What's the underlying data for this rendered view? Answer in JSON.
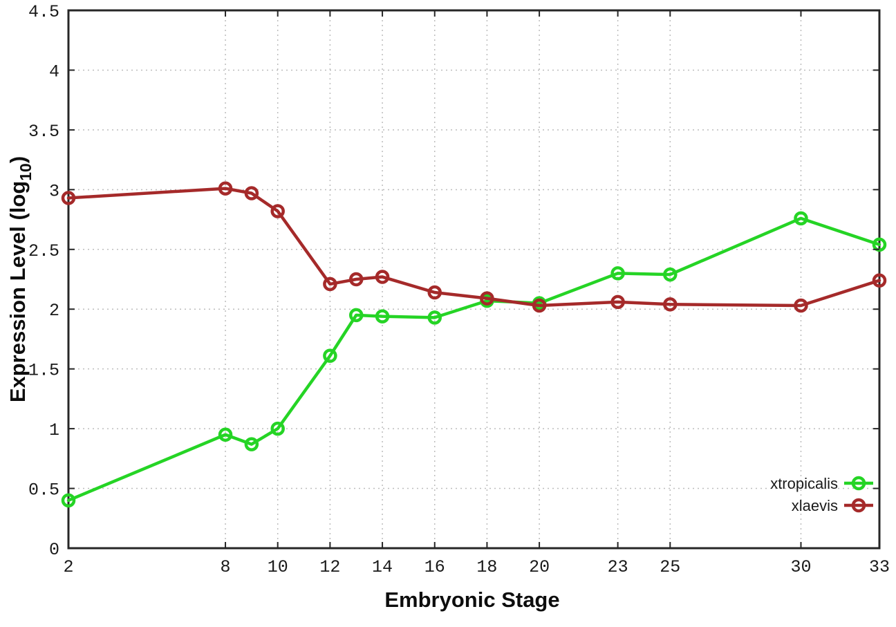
{
  "chart_data": {
    "type": "line",
    "title": "",
    "xlabel": "Embryonic Stage",
    "ylabel": "Expression Level (log10)",
    "ylabel_parts": {
      "main": "Expression Level (log",
      "sub": "10",
      "end": ")"
    },
    "xlim": [
      2,
      33
    ],
    "ylim": [
      0,
      4.5
    ],
    "grid": true,
    "grid_style": "dotted",
    "legend_position": "bottom-right",
    "marker": "open-circle",
    "x_ticks": [
      2,
      8,
      10,
      12,
      14,
      16,
      18,
      20,
      23,
      25,
      30,
      33
    ],
    "x_tick_labels": [
      "2",
      "8",
      "10",
      "12",
      "14",
      "16",
      "18",
      "20",
      "23",
      "25",
      "30",
      "33"
    ],
    "y_ticks": [
      0,
      0.5,
      1,
      1.5,
      2,
      2.5,
      3,
      3.5,
      4,
      4.5
    ],
    "y_tick_labels": [
      "0",
      "0.5",
      "1",
      "1.5",
      "2",
      "2.5",
      "3",
      "3.5",
      "4",
      "4.5"
    ],
    "x": [
      2,
      8,
      9,
      10,
      12,
      13,
      14,
      16,
      18,
      20,
      23,
      25,
      30,
      33
    ],
    "series": [
      {
        "name": "xtropicalis",
        "color": "#25d425",
        "values": [
          0.4,
          0.95,
          0.87,
          1.0,
          1.61,
          1.95,
          1.94,
          1.93,
          2.07,
          2.05,
          2.3,
          2.29,
          2.76,
          2.54
        ]
      },
      {
        "name": "xlaevis",
        "color": "#a52a2a",
        "values": [
          2.93,
          3.01,
          2.97,
          2.82,
          2.21,
          2.25,
          2.27,
          2.14,
          2.09,
          2.03,
          2.06,
          2.04,
          2.03,
          2.24
        ]
      }
    ],
    "colors": {
      "grid": "#bcbcbc",
      "border": "#262626",
      "tick_text": "#1a1a1a"
    }
  }
}
